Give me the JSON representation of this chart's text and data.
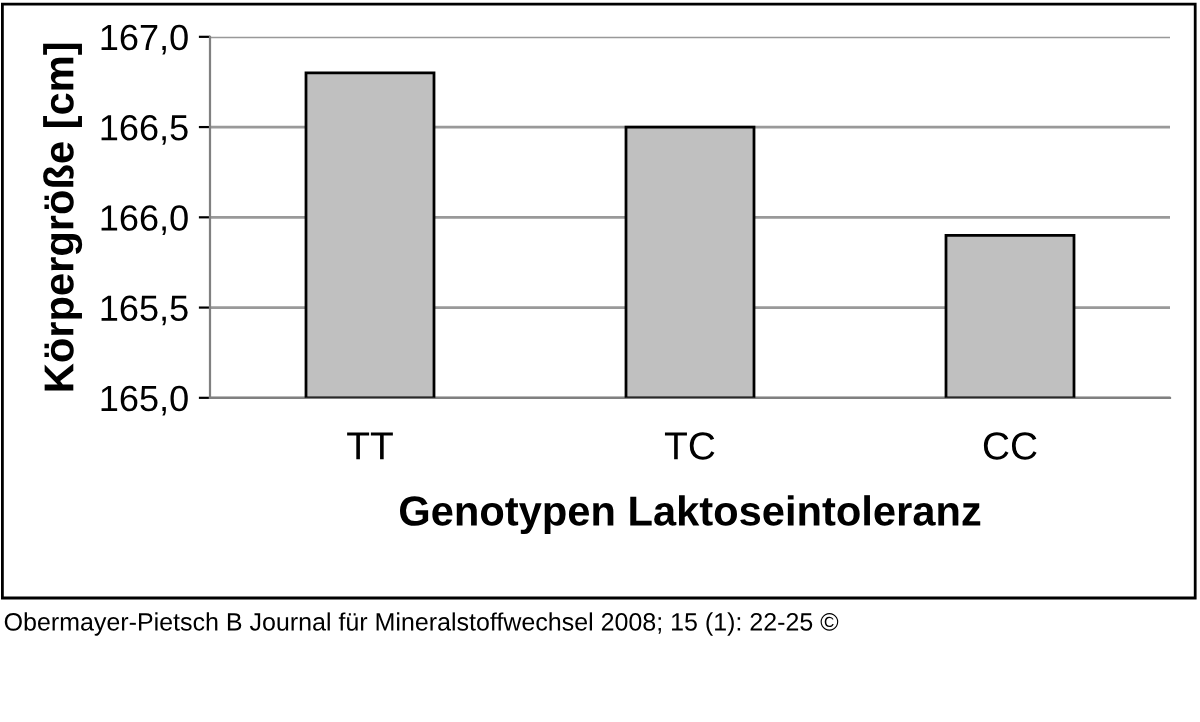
{
  "chart_data": {
    "type": "bar",
    "xlabel": "Genotypen Laktoseintoleranz",
    "ylabel": "Körpergröße [cm]",
    "categories": [
      "TT",
      "TC",
      "CC"
    ],
    "values": [
      166.8,
      166.5,
      165.9
    ],
    "color": "#c0c0c0",
    "ylim": [
      165,
      167
    ],
    "yticks": [
      {
        "value": 165,
        "label": "165,0"
      },
      {
        "value": 165.5,
        "label": "165,5"
      },
      {
        "value": 166,
        "label": "166,0"
      },
      {
        "value": 166.5,
        "label": "166,5"
      },
      {
        "value": 167,
        "label": "167,0"
      }
    ],
    "grid": "y",
    "annotations": [
      "Obermayer-Pietsch B Journal für Mineralstoffwechsel 2008; 15 (1): 22-25 ©"
    ]
  }
}
